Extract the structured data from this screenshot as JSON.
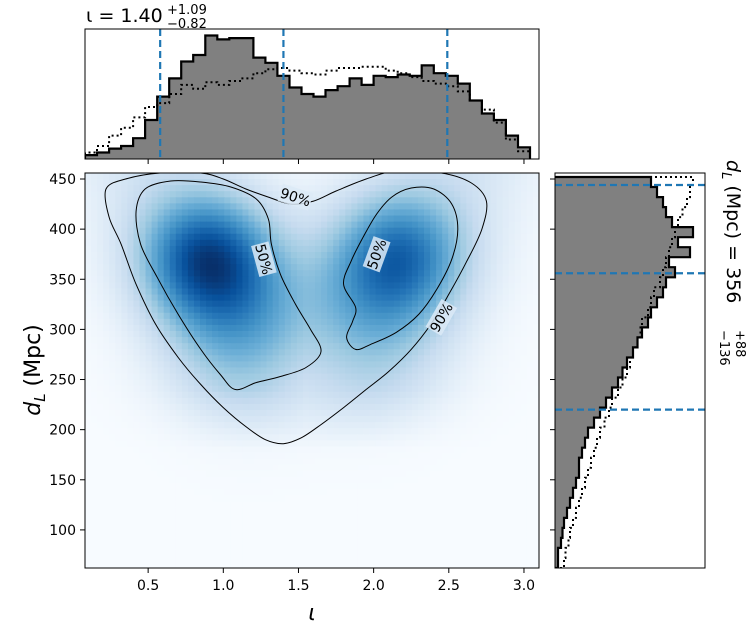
{
  "chart_data": [
    {
      "type": "heatmap",
      "panel": "joint-posterior",
      "xlabel": "ι",
      "ylabel": "d_L (Mpc)",
      "xlim": [
        0.08,
        3.1
      ],
      "ylim": [
        62,
        456
      ],
      "xticks": [
        0.5,
        1.0,
        1.5,
        2.0,
        2.5,
        3.0
      ],
      "xtick_labels": [
        "0.5",
        "1.0",
        "1.5",
        "2.0",
        "2.5",
        "3.0"
      ],
      "yticks": [
        100,
        150,
        200,
        250,
        300,
        350,
        400,
        450
      ],
      "ytick_labels": [
        "100",
        "150",
        "200",
        "250",
        "300",
        "350",
        "400",
        "450"
      ],
      "colormap": "Blues",
      "density_peaks": [
        {
          "x": 0.88,
          "y": 372,
          "weight": 1.0
        },
        {
          "x": 1.15,
          "y": 320,
          "weight": 0.55
        },
        {
          "x": 2.18,
          "y": 375,
          "weight": 0.75
        },
        {
          "x": 1.95,
          "y": 330,
          "weight": 0.45
        }
      ],
      "contours": [
        {
          "label": "90%",
          "points": [
            [
              0.22,
              440
            ],
            [
              0.35,
              450
            ],
            [
              0.58,
              456
            ],
            [
              0.85,
              456
            ],
            [
              1.0,
              450
            ],
            [
              1.15,
              440
            ],
            [
              1.3,
              432
            ],
            [
              1.45,
              425
            ],
            [
              1.6,
              428
            ],
            [
              1.75,
              438
            ],
            [
              1.95,
              450
            ],
            [
              2.15,
              458
            ],
            [
              2.45,
              456
            ],
            [
              2.65,
              446
            ],
            [
              2.75,
              428
            ],
            [
              2.72,
              400
            ],
            [
              2.62,
              368
            ],
            [
              2.5,
              335
            ],
            [
              2.38,
              305
            ],
            [
              2.25,
              280
            ],
            [
              2.1,
              258
            ],
            [
              1.95,
              240
            ],
            [
              1.8,
              222
            ],
            [
              1.65,
              205
            ],
            [
              1.52,
              192
            ],
            [
              1.4,
              186
            ],
            [
              1.28,
              190
            ],
            [
              1.15,
              203
            ],
            [
              1.0,
              222
            ],
            [
              0.85,
              245
            ],
            [
              0.7,
              272
            ],
            [
              0.55,
              305
            ],
            [
              0.42,
              345
            ],
            [
              0.32,
              385
            ],
            [
              0.24,
              412
            ]
          ]
        },
        {
          "label": "50%",
          "points": [
            [
              0.45,
              385
            ],
            [
              0.42,
              418
            ],
            [
              0.48,
              440
            ],
            [
              0.65,
              448
            ],
            [
              0.85,
              447
            ],
            [
              1.05,
              442
            ],
            [
              1.22,
              430
            ],
            [
              1.3,
              410
            ],
            [
              1.32,
              385
            ],
            [
              1.38,
              355
            ],
            [
              1.48,
              325
            ],
            [
              1.58,
              300
            ],
            [
              1.65,
              278
            ],
            [
              1.55,
              262
            ],
            [
              1.38,
              253
            ],
            [
              1.22,
              247
            ],
            [
              1.08,
              240
            ],
            [
              0.98,
              255
            ],
            [
              0.85,
              280
            ],
            [
              0.7,
              315
            ],
            [
              0.56,
              352
            ]
          ]
        },
        {
          "label": "50%",
          "points": [
            [
              1.8,
              345
            ],
            [
              1.85,
              368
            ],
            [
              1.93,
              392
            ],
            [
              2.02,
              415
            ],
            [
              2.12,
              432
            ],
            [
              2.25,
              441
            ],
            [
              2.4,
              440
            ],
            [
              2.52,
              425
            ],
            [
              2.56,
              400
            ],
            [
              2.52,
              370
            ],
            [
              2.42,
              340
            ],
            [
              2.3,
              315
            ],
            [
              2.15,
              297
            ],
            [
              1.98,
              285
            ],
            [
              1.88,
              280
            ],
            [
              1.82,
              292
            ],
            [
              1.86,
              308
            ],
            [
              1.88,
              322
            ]
          ]
        }
      ],
      "contour_labels": [
        {
          "text": "90%",
          "x": 1.48,
          "y": 432,
          "angle": 18
        },
        {
          "text": "50%",
          "x": 1.27,
          "y": 370,
          "angle": 75
        },
        {
          "text": "50%",
          "x": 2.02,
          "y": 375,
          "angle": -70
        },
        {
          "text": "90%",
          "x": 2.45,
          "y": 312,
          "angle": -60
        }
      ]
    },
    {
      "type": "histogram",
      "panel": "marginal-iota",
      "title": "ι = 1.40",
      "title_sup": "+1.09",
      "title_sub": "−0.82",
      "xlim": [
        0.08,
        3.1
      ],
      "ylim": [
        0,
        1.0
      ],
      "bin_edges": [
        0.08,
        0.16,
        0.24,
        0.32,
        0.4,
        0.48,
        0.56,
        0.64,
        0.72,
        0.8,
        0.88,
        0.96,
        1.04,
        1.12,
        1.2,
        1.28,
        1.36,
        1.44,
        1.52,
        1.6,
        1.68,
        1.76,
        1.84,
        1.92,
        2.0,
        2.08,
        2.16,
        2.24,
        2.32,
        2.4,
        2.48,
        2.56,
        2.64,
        2.72,
        2.8,
        2.88,
        2.96,
        3.04
      ],
      "series": [
        {
          "name": "",
          "style": "filled-step",
          "fill": "#808080",
          "values": [
            0.03,
            0.05,
            0.08,
            0.1,
            0.16,
            0.3,
            0.48,
            0.62,
            0.75,
            0.8,
            0.95,
            0.92,
            0.93,
            0.93,
            0.78,
            0.74,
            0.64,
            0.55,
            0.5,
            0.48,
            0.53,
            0.56,
            0.62,
            0.57,
            0.64,
            0.63,
            0.65,
            0.64,
            0.72,
            0.66,
            0.64,
            0.58,
            0.45,
            0.35,
            0.3,
            0.18,
            0.09
          ]
        },
        {
          "name": "",
          "style": "dotted-step",
          "values": [
            0.05,
            0.1,
            0.18,
            0.24,
            0.32,
            0.4,
            0.43,
            0.5,
            0.57,
            0.54,
            0.59,
            0.57,
            0.6,
            0.62,
            0.66,
            0.69,
            0.7,
            0.68,
            0.66,
            0.65,
            0.68,
            0.7,
            0.7,
            0.71,
            0.71,
            0.68,
            0.66,
            0.63,
            0.6,
            0.58,
            0.56,
            0.52,
            0.45,
            0.38,
            0.28,
            0.15,
            0.06
          ]
        }
      ],
      "quantile_lines": [
        0.58,
        1.4,
        2.49
      ]
    },
    {
      "type": "histogram",
      "panel": "marginal-dL",
      "orientation": "horizontal",
      "title": "d_L (Mpc) = 356",
      "title_sup": "+88",
      "title_sub": "−136",
      "ylim": [
        62,
        456
      ],
      "xlim": [
        0,
        1.0
      ],
      "bin_edges": [
        62,
        72,
        82,
        92,
        102,
        112,
        122,
        132,
        142,
        152,
        162,
        172,
        182,
        192,
        202,
        212,
        222,
        232,
        242,
        252,
        262,
        272,
        282,
        292,
        302,
        312,
        322,
        332,
        342,
        352,
        362,
        372,
        382,
        392,
        402,
        412,
        422,
        432,
        442,
        452
      ],
      "series": [
        {
          "name": "",
          "style": "filled-step",
          "fill": "#808080",
          "values": [
            0.02,
            0.02,
            0.04,
            0.05,
            0.06,
            0.08,
            0.1,
            0.12,
            0.14,
            0.16,
            0.16,
            0.18,
            0.2,
            0.22,
            0.26,
            0.3,
            0.34,
            0.38,
            0.42,
            0.45,
            0.48,
            0.52,
            0.55,
            0.58,
            0.62,
            0.64,
            0.68,
            0.72,
            0.74,
            0.8,
            0.76,
            0.9,
            0.82,
            0.92,
            0.78,
            0.74,
            0.72,
            0.68,
            0.64
          ]
        },
        {
          "name": "",
          "style": "dotted-step",
          "values": [
            0.06,
            0.07,
            0.09,
            0.1,
            0.12,
            0.14,
            0.16,
            0.18,
            0.2,
            0.22,
            0.24,
            0.26,
            0.28,
            0.3,
            0.33,
            0.36,
            0.38,
            0.42,
            0.45,
            0.48,
            0.5,
            0.52,
            0.55,
            0.57,
            0.58,
            0.62,
            0.64,
            0.66,
            0.7,
            0.72,
            0.74,
            0.76,
            0.78,
            0.8,
            0.82,
            0.85,
            0.88,
            0.9,
            0.92
          ]
        }
      ],
      "quantile_lines": [
        220,
        356,
        444
      ]
    }
  ],
  "colors": {
    "quantile": "#1f77b4",
    "fill": "#808080",
    "edge": "#000000",
    "cmap_low": "#f7fbff",
    "cmap_high": "#08306b"
  }
}
